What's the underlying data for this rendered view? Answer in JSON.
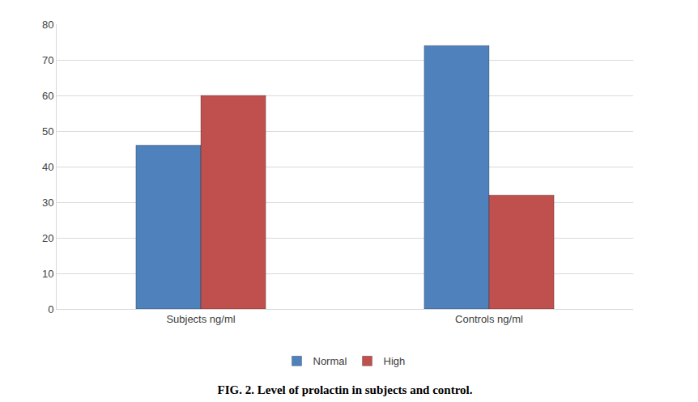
{
  "chart_data": {
    "type": "bar",
    "title": "FIG. 2. Level of prolactin in subjects and control.",
    "categories": [
      "Subjects ng/ml",
      "Controls ng/ml"
    ],
    "series": [
      {
        "name": "Normal",
        "color": "#4f81bd",
        "values": [
          46,
          74
        ]
      },
      {
        "name": "High",
        "color": "#c0504d",
        "values": [
          60,
          32
        ]
      }
    ],
    "ylim": [
      0,
      80
    ],
    "yticks": [
      0,
      10,
      20,
      30,
      40,
      50,
      60,
      70,
      80
    ],
    "grid": true,
    "legend": "bottom"
  }
}
